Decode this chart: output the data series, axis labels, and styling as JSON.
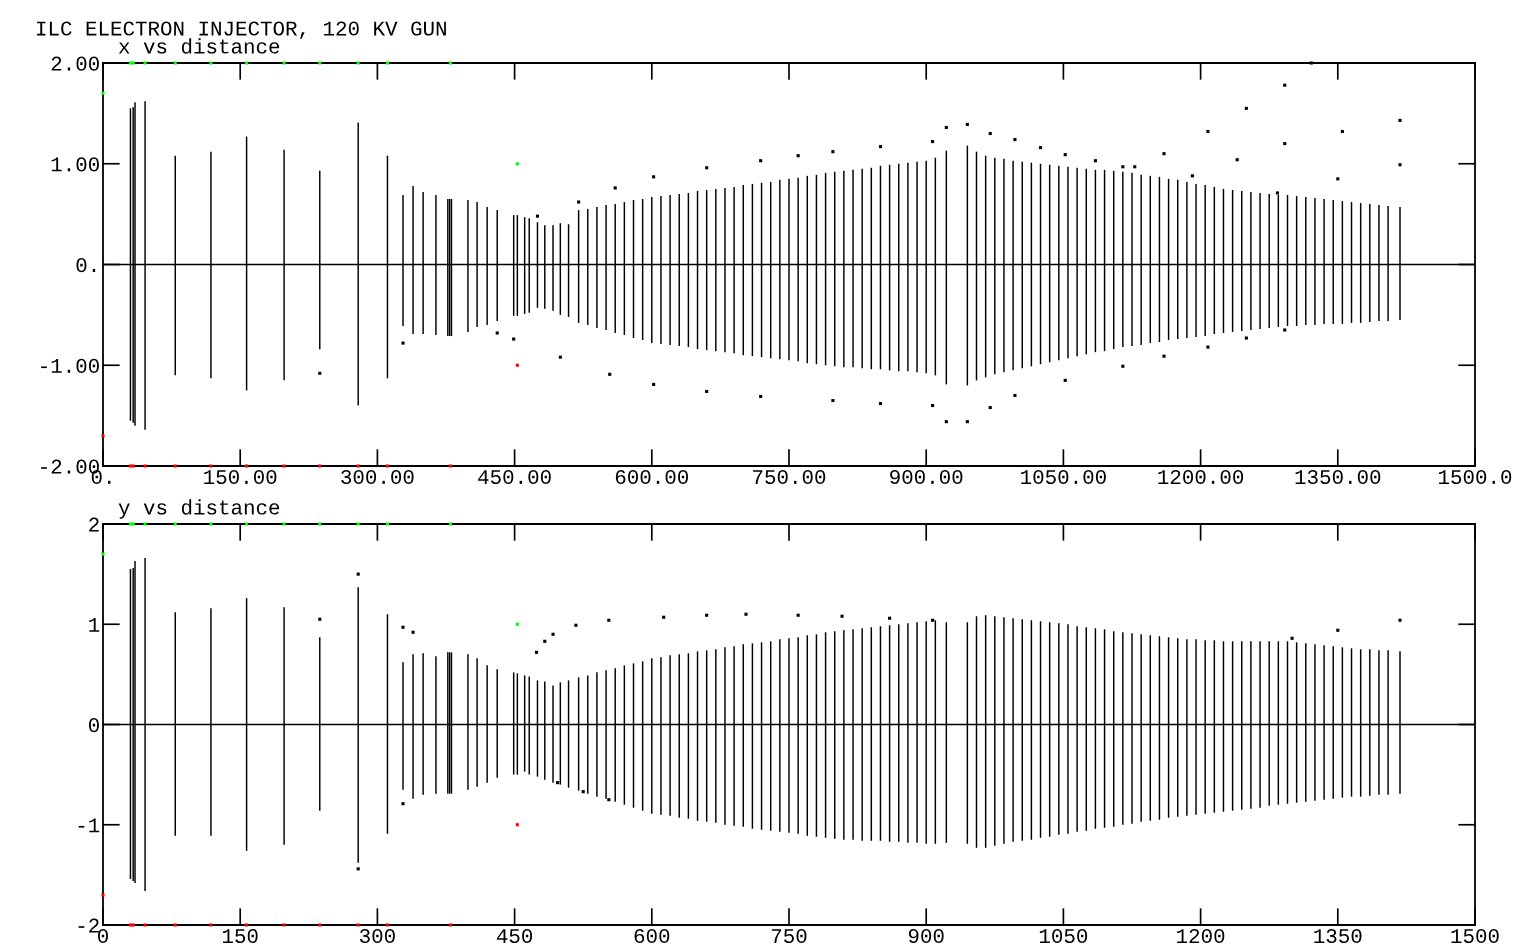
{
  "chart_data": [
    {
      "type": "bar",
      "title": "ILC ELECTRON INJECTOR, 120 KV GUN",
      "subtitle": "x vs distance",
      "grid": false,
      "xlim": [
        0,
        1500
      ],
      "ylim": [
        -2,
        2
      ],
      "xticks": [
        {
          "value": 0,
          "label": "0."
        },
        {
          "value": 150,
          "label": "150.00"
        },
        {
          "value": 300,
          "label": "300.00"
        },
        {
          "value": 450,
          "label": "450.00"
        },
        {
          "value": 600,
          "label": "600.00"
        },
        {
          "value": 750,
          "label": "750.00"
        },
        {
          "value": 900,
          "label": "900.00"
        },
        {
          "value": 1050,
          "label": "1050.00"
        },
        {
          "value": 1200,
          "label": "1200.00"
        },
        {
          "value": 1350,
          "label": "1350.00"
        },
        {
          "value": 1500,
          "label": "1500.0"
        }
      ],
      "yticks": [
        {
          "value": -2,
          "label": "-2.00"
        },
        {
          "value": -1,
          "label": "-1.00"
        },
        {
          "value": 0,
          "label": "0."
        },
        {
          "value": 1,
          "label": "1.00"
        },
        {
          "value": 2,
          "label": "2.00"
        }
      ],
      "ref_lines": [
        {
          "axis": "y",
          "value": 0,
          "color": "#000000"
        }
      ],
      "series": [
        {
          "color": "#000000",
          "x": [
            30,
            33,
            35,
            46,
            79,
            118,
            157,
            198,
            237,
            279,
            311,
            328,
            339,
            350,
            364,
            377,
            379,
            381,
            399,
            409,
            420,
            431,
            449,
            453,
            461,
            466,
            475,
            483,
            492,
            500,
            509,
            520,
            530,
            540,
            550,
            560,
            570,
            580,
            590,
            600,
            610,
            620,
            630,
            640,
            650,
            660,
            670,
            680,
            690,
            700,
            710,
            720,
            730,
            740,
            750,
            760,
            770,
            780,
            790,
            800,
            810,
            820,
            830,
            840,
            850,
            860,
            870,
            880,
            890,
            900,
            910,
            922,
            945,
            955,
            965,
            975,
            985,
            995,
            1005,
            1015,
            1025,
            1035,
            1045,
            1055,
            1065,
            1075,
            1085,
            1095,
            1105,
            1115,
            1125,
            1135,
            1145,
            1155,
            1165,
            1175,
            1185,
            1195,
            1205,
            1215,
            1225,
            1235,
            1245,
            1255,
            1265,
            1275,
            1285,
            1295,
            1305,
            1315,
            1325,
            1335,
            1345,
            1355,
            1365,
            1375,
            1385,
            1395,
            1405,
            1418
          ],
          "base": [
            -1.55,
            -1.57,
            -1.6,
            -1.64,
            -1.1,
            -1.13,
            -1.25,
            -1.15,
            -0.84,
            -1.4,
            -1.13,
            -0.61,
            -0.69,
            -0.69,
            -0.7,
            -0.71,
            -0.71,
            -0.71,
            -0.67,
            -0.62,
            -0.6,
            -0.56,
            -0.51,
            -0.51,
            -0.49,
            -0.48,
            -0.43,
            -0.44,
            -0.46,
            -0.5,
            -0.52,
            -0.58,
            -0.6,
            -0.63,
            -0.65,
            -0.68,
            -0.7,
            -0.73,
            -0.75,
            -0.78,
            -0.79,
            -0.8,
            -0.81,
            -0.82,
            -0.84,
            -0.85,
            -0.86,
            -0.87,
            -0.88,
            -0.9,
            -0.91,
            -0.92,
            -0.93,
            -0.94,
            -0.95,
            -0.96,
            -0.98,
            -0.99,
            -1.0,
            -1.01,
            -1.02,
            -1.02,
            -1.03,
            -1.04,
            -1.04,
            -1.05,
            -1.06,
            -1.06,
            -1.07,
            -1.08,
            -1.1,
            -1.19,
            -1.2,
            -1.15,
            -1.12,
            -1.09,
            -1.07,
            -1.05,
            -1.03,
            -1.01,
            -0.99,
            -0.97,
            -0.95,
            -0.93,
            -0.91,
            -0.89,
            -0.87,
            -0.86,
            -0.84,
            -0.82,
            -0.81,
            -0.8,
            -0.78,
            -0.77,
            -0.75,
            -0.74,
            -0.73,
            -0.72,
            -0.71,
            -0.69,
            -0.68,
            -0.67,
            -0.66,
            -0.65,
            -0.64,
            -0.63,
            -0.62,
            -0.61,
            -0.61,
            -0.6,
            -0.6,
            -0.59,
            -0.59,
            -0.59,
            -0.58,
            -0.58,
            -0.57,
            -0.56,
            -0.56,
            -0.55
          ],
          "values": [
            3.1,
            3.13,
            3.21,
            3.26,
            2.18,
            2.25,
            2.52,
            2.29,
            1.77,
            2.81,
            2.21,
            1.3,
            1.47,
            1.41,
            1.39,
            1.36,
            1.36,
            1.36,
            1.31,
            1.24,
            1.17,
            1.1,
            1.0,
            1.0,
            0.96,
            0.94,
            0.85,
            0.83,
            0.85,
            0.91,
            0.92,
            1.12,
            1.15,
            1.2,
            1.24,
            1.28,
            1.32,
            1.37,
            1.4,
            1.45,
            1.47,
            1.49,
            1.51,
            1.53,
            1.57,
            1.59,
            1.61,
            1.63,
            1.65,
            1.69,
            1.71,
            1.73,
            1.75,
            1.78,
            1.8,
            1.82,
            1.86,
            1.88,
            1.91,
            1.93,
            1.95,
            1.96,
            1.98,
            2.0,
            2.02,
            2.04,
            2.06,
            2.07,
            2.09,
            2.11,
            2.16,
            2.32,
            2.38,
            2.27,
            2.2,
            2.15,
            2.12,
            2.08,
            2.05,
            2.02,
            1.99,
            1.96,
            1.93,
            1.9,
            1.87,
            1.84,
            1.81,
            1.8,
            1.77,
            1.74,
            1.72,
            1.69,
            1.66,
            1.64,
            1.6,
            1.58,
            1.55,
            1.52,
            1.5,
            1.46,
            1.43,
            1.41,
            1.39,
            1.37,
            1.35,
            1.33,
            1.31,
            1.3,
            1.29,
            1.27,
            1.26,
            1.24,
            1.23,
            1.22,
            1.2,
            1.19,
            1.17,
            1.15,
            1.14,
            1.12
          ]
        },
        {
          "type": "scatter",
          "color": "#000000",
          "marker": "square",
          "x": [
            475,
            520,
            560,
            602,
            660,
            719,
            760,
            798,
            850,
            907,
            922,
            945,
            970,
            997,
            1025,
            1052,
            1085,
            1115,
            1128,
            1160,
            1208,
            1250,
            1292,
            1321,
            1191,
            1240,
            1292,
            1355,
            1418,
            1284,
            1350,
            1418,
            449,
            500,
            554,
            602,
            660,
            719,
            798,
            850,
            907,
            922,
            945,
            970,
            997,
            1052,
            1115,
            1160,
            1208,
            1250,
            1292,
            237,
            328,
            431
          ],
          "values": [
            0.48,
            0.62,
            0.76,
            0.87,
            0.96,
            1.03,
            1.08,
            1.12,
            1.17,
            1.22,
            1.36,
            1.39,
            1.3,
            1.24,
            1.16,
            1.09,
            1.03,
            0.97,
            0.97,
            1.1,
            1.32,
            1.55,
            1.78,
            2.0,
            0.88,
            1.04,
            1.2,
            1.32,
            1.43,
            0.71,
            0.85,
            0.99,
            -0.74,
            -0.92,
            -1.09,
            -1.19,
            -1.26,
            -1.31,
            -1.35,
            -1.38,
            -1.4,
            -1.56,
            -1.56,
            -1.42,
            -1.3,
            -1.15,
            -1.01,
            -0.91,
            -0.82,
            -0.73,
            -0.65,
            -1.08,
            -0.78,
            -0.68
          ]
        },
        {
          "type": "scatter",
          "color": "#00ff00",
          "marker": "square",
          "x": [
            0,
            30,
            33,
            46,
            79,
            118,
            157,
            198,
            237,
            279,
            311,
            380,
            453
          ],
          "values": [
            1.7,
            2,
            2,
            2,
            2,
            2,
            2,
            2,
            2,
            2,
            2,
            2,
            1
          ]
        },
        {
          "type": "scatter",
          "color": "#ff0000",
          "marker": "square",
          "x": [
            0,
            30,
            33,
            46,
            79,
            118,
            157,
            198,
            237,
            279,
            311,
            380,
            453
          ],
          "values": [
            -1.7,
            -2,
            -2,
            -2,
            -2,
            -2,
            -2,
            -2,
            -2,
            -2,
            -2,
            -2,
            -1
          ]
        }
      ]
    },
    {
      "type": "bar",
      "subtitle": "y vs distance",
      "grid": false,
      "xlim": [
        0,
        1500
      ],
      "ylim": [
        -2,
        2
      ],
      "xticks": [
        0,
        150,
        300,
        450,
        600,
        750,
        900,
        1050,
        1200,
        1350,
        1500
      ],
      "yticks": [
        -2,
        -1,
        0,
        1,
        2
      ],
      "ref_lines": [
        {
          "axis": "y",
          "value": 0,
          "color": "#000000"
        }
      ],
      "series": [
        {
          "color": "#000000",
          "x": [
            30,
            33,
            35,
            46,
            79,
            118,
            157,
            198,
            237,
            279,
            311,
            328,
            339,
            350,
            364,
            377,
            379,
            381,
            399,
            409,
            420,
            431,
            449,
            453,
            461,
            466,
            475,
            483,
            492,
            500,
            509,
            520,
            530,
            540,
            550,
            560,
            570,
            580,
            590,
            600,
            610,
            620,
            630,
            640,
            650,
            660,
            670,
            680,
            690,
            700,
            710,
            720,
            730,
            740,
            750,
            760,
            770,
            780,
            790,
            800,
            810,
            820,
            830,
            840,
            850,
            860,
            870,
            880,
            890,
            900,
            910,
            922,
            945,
            955,
            965,
            975,
            985,
            995,
            1005,
            1015,
            1025,
            1035,
            1045,
            1055,
            1065,
            1075,
            1085,
            1095,
            1105,
            1115,
            1125,
            1135,
            1145,
            1155,
            1165,
            1175,
            1185,
            1195,
            1205,
            1215,
            1225,
            1235,
            1245,
            1255,
            1265,
            1275,
            1285,
            1295,
            1305,
            1315,
            1325,
            1335,
            1345,
            1355,
            1365,
            1375,
            1385,
            1395,
            1405,
            1418
          ],
          "base": [
            -1.54,
            -1.56,
            -1.58,
            -1.66,
            -1.11,
            -1.11,
            -1.26,
            -1.2,
            -0.86,
            -1.38,
            -1.09,
            -0.65,
            -0.74,
            -0.7,
            -0.69,
            -0.69,
            -0.69,
            -0.69,
            -0.65,
            -0.62,
            -0.58,
            -0.53,
            -0.5,
            -0.5,
            -0.47,
            -0.5,
            -0.52,
            -0.55,
            -0.58,
            -0.6,
            -0.63,
            -0.66,
            -0.69,
            -0.72,
            -0.74,
            -0.77,
            -0.8,
            -0.83,
            -0.86,
            -0.89,
            -0.9,
            -0.91,
            -0.93,
            -0.94,
            -0.96,
            -0.97,
            -0.98,
            -1.0,
            -1.01,
            -1.02,
            -1.04,
            -1.05,
            -1.06,
            -1.07,
            -1.08,
            -1.09,
            -1.11,
            -1.12,
            -1.13,
            -1.14,
            -1.15,
            -1.15,
            -1.16,
            -1.16,
            -1.16,
            -1.17,
            -1.17,
            -1.18,
            -1.18,
            -1.19,
            -1.19,
            -1.18,
            -1.19,
            -1.23,
            -1.23,
            -1.21,
            -1.19,
            -1.17,
            -1.16,
            -1.15,
            -1.13,
            -1.12,
            -1.1,
            -1.09,
            -1.07,
            -1.06,
            -1.04,
            -1.03,
            -1.02,
            -1.0,
            -0.99,
            -0.97,
            -0.96,
            -0.95,
            -0.93,
            -0.92,
            -0.91,
            -0.9,
            -0.89,
            -0.88,
            -0.87,
            -0.86,
            -0.85,
            -0.84,
            -0.83,
            -0.81,
            -0.8,
            -0.79,
            -0.78,
            -0.77,
            -0.76,
            -0.75,
            -0.74,
            -0.73,
            -0.72,
            -0.72,
            -0.71,
            -0.7,
            -0.7,
            -0.69
          ],
          "values": [
            3.09,
            3.12,
            3.21,
            3.32,
            2.23,
            2.27,
            2.52,
            2.37,
            1.73,
            2.75,
            2.19,
            1.27,
            1.44,
            1.41,
            1.37,
            1.41,
            1.41,
            1.41,
            1.35,
            1.28,
            1.17,
            1.08,
            1.02,
            1.01,
            0.96,
            0.98,
            0.96,
            0.98,
            0.97,
            1.02,
            1.07,
            1.13,
            1.18,
            1.24,
            1.28,
            1.33,
            1.39,
            1.44,
            1.49,
            1.55,
            1.57,
            1.6,
            1.63,
            1.65,
            1.69,
            1.71,
            1.73,
            1.77,
            1.79,
            1.82,
            1.85,
            1.87,
            1.89,
            1.92,
            1.94,
            1.96,
            2.0,
            2.02,
            2.05,
            2.07,
            2.09,
            2.1,
            2.12,
            2.13,
            2.14,
            2.16,
            2.17,
            2.19,
            2.2,
            2.22,
            2.23,
            2.2,
            2.21,
            2.31,
            2.32,
            2.29,
            2.26,
            2.23,
            2.21,
            2.19,
            2.16,
            2.14,
            2.11,
            2.09,
            2.05,
            2.03,
            2.0,
            1.98,
            1.95,
            1.92,
            1.9,
            1.87,
            1.85,
            1.83,
            1.8,
            1.78,
            1.76,
            1.75,
            1.73,
            1.72,
            1.7,
            1.69,
            1.68,
            1.67,
            1.66,
            1.64,
            1.63,
            1.62,
            1.6,
            1.58,
            1.56,
            1.54,
            1.52,
            1.5,
            1.48,
            1.47,
            1.46,
            1.44,
            1.44,
            1.42
          ]
        },
        {
          "type": "scatter",
          "color": "#000000",
          "marker": "square",
          "x": [
            474,
            483,
            492,
            517,
            553,
            613,
            660,
            703,
            760,
            808,
            860,
            907,
            1300,
            1350,
            1418,
            497,
            525,
            553,
            237,
            279,
            279,
            328,
            339,
            328
          ],
          "values": [
            0.72,
            0.83,
            0.9,
            0.99,
            1.04,
            1.07,
            1.09,
            1.1,
            1.09,
            1.08,
            1.06,
            1.04,
            0.86,
            0.94,
            1.04,
            -0.58,
            -0.67,
            -0.75,
            1.05,
            1.5,
            -1.44,
            0.97,
            0.92,
            -0.79
          ]
        },
        {
          "type": "scatter",
          "color": "#00ff00",
          "marker": "square",
          "x": [
            0,
            30,
            33,
            46,
            79,
            118,
            157,
            198,
            237,
            279,
            311,
            380,
            453
          ],
          "values": [
            1.7,
            2,
            2,
            2,
            2,
            2,
            2,
            2,
            2,
            2,
            2,
            2,
            1
          ]
        },
        {
          "type": "scatter",
          "color": "#ff0000",
          "marker": "square",
          "x": [
            0,
            30,
            33,
            46,
            79,
            118,
            157,
            198,
            237,
            279,
            311,
            380,
            453
          ],
          "values": [
            -1.7,
            -2,
            -2,
            -2,
            -2,
            -2,
            -2,
            -2,
            -2,
            -2,
            -2,
            -2,
            -1
          ]
        }
      ]
    }
  ]
}
